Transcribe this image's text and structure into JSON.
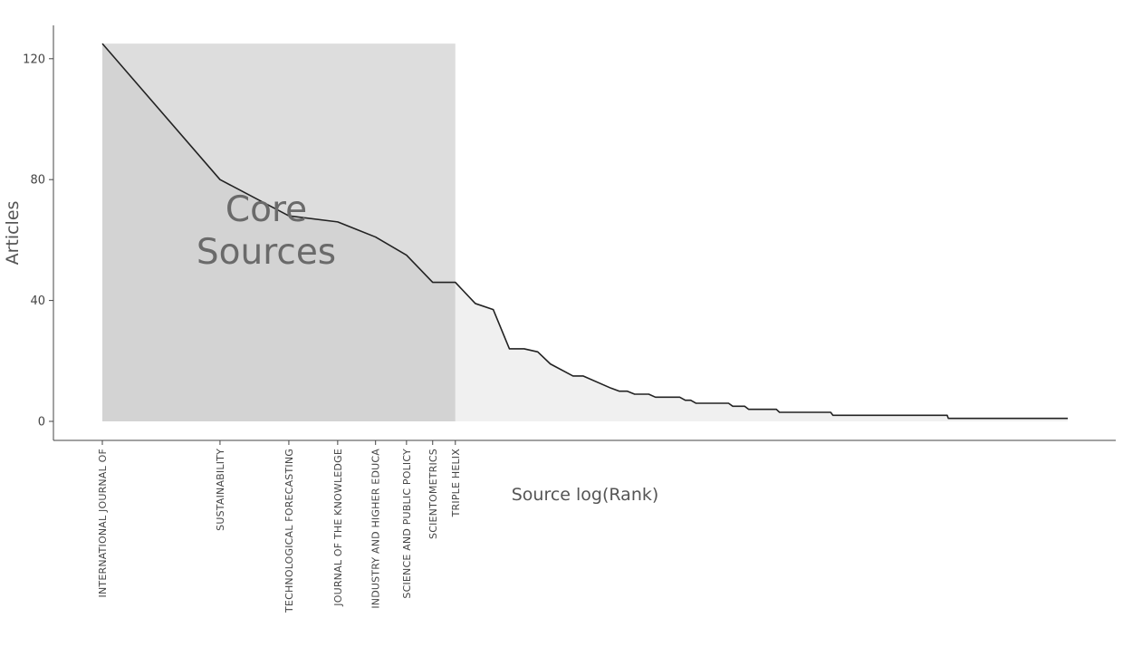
{
  "chart_data": {
    "type": "area",
    "xlabel": "Source log(Rank)",
    "ylabel": "Articles",
    "x_scale": "log",
    "ylim": [
      0,
      125
    ],
    "yticks": [
      0,
      40,
      80,
      120
    ],
    "grid": false,
    "core_zone": {
      "label_line1": "Core",
      "label_line2": "Sources",
      "rank_from": 1,
      "rank_to": 8
    },
    "core_sources": [
      {
        "rank": 1,
        "name": "INTERNATIONAL JOURNAL OF",
        "articles": 125
      },
      {
        "rank": 2,
        "name": "SUSTAINABILITY",
        "articles": 80
      },
      {
        "rank": 3,
        "name": "TECHNOLOGICAL FORECASTING",
        "articles": 68
      },
      {
        "rank": 4,
        "name": "JOURNAL OF THE KNOWLEDGE",
        "articles": 66
      },
      {
        "rank": 5,
        "name": "INDUSTRY AND HIGHER EDUCA",
        "articles": 61
      },
      {
        "rank": 6,
        "name": "SCIENCE AND PUBLIC POLICY",
        "articles": 55
      },
      {
        "rank": 7,
        "name": "SCIENTOMETRICS",
        "articles": 46
      },
      {
        "rank": 8,
        "name": "TRIPLE HELIX",
        "articles": 46
      }
    ],
    "series": [
      {
        "points": [
          [
            1,
            125
          ],
          [
            2,
            80
          ],
          [
            3,
            68
          ],
          [
            4,
            66
          ],
          [
            5,
            61
          ],
          [
            6,
            55
          ],
          [
            7,
            46
          ],
          [
            8,
            46
          ],
          [
            9,
            39
          ],
          [
            10,
            37
          ],
          [
            11,
            24
          ],
          [
            12,
            24
          ],
          [
            13,
            23
          ],
          [
            14,
            19
          ],
          [
            16,
            15
          ],
          [
            17,
            15
          ],
          [
            20,
            11
          ],
          [
            21,
            10
          ],
          [
            22,
            10
          ],
          [
            23,
            9
          ],
          [
            25,
            9
          ],
          [
            26,
            8
          ],
          [
            30,
            8
          ],
          [
            31,
            7
          ],
          [
            32,
            7
          ],
          [
            33,
            6
          ],
          [
            40,
            6
          ],
          [
            41,
            5
          ],
          [
            44,
            5
          ],
          [
            45,
            4
          ],
          [
            53,
            4
          ],
          [
            54,
            3
          ],
          [
            73,
            3
          ],
          [
            74,
            2
          ],
          [
            145,
            2
          ],
          [
            146,
            1
          ],
          [
            295,
            1
          ]
        ]
      }
    ]
  }
}
